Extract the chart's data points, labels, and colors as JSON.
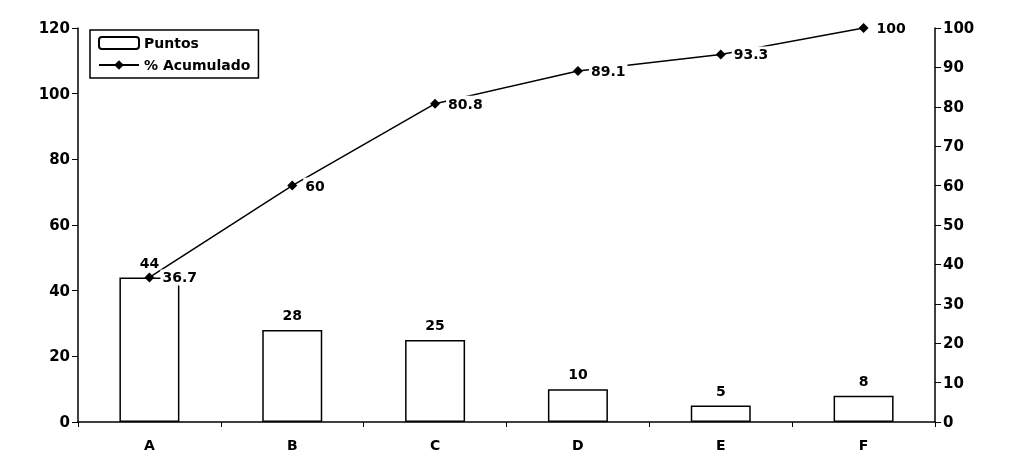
{
  "chart_data": {
    "type": "bar",
    "categories": [
      "A",
      "B",
      "C",
      "D",
      "E",
      "F"
    ],
    "series": [
      {
        "name": "Puntos",
        "color": "#ffffff",
        "values": [
          44,
          28,
          25,
          10,
          5,
          8
        ]
      },
      {
        "name": "% Acumulado",
        "type": "line",
        "axis": "y2",
        "color": "#000000",
        "values": [
          36.7,
          60,
          80.8,
          89.1,
          93.3,
          100
        ]
      }
    ],
    "ylim": [
      0,
      120
    ],
    "yticks": [
      0,
      20,
      40,
      60,
      80,
      100,
      120
    ],
    "y2lim": [
      0,
      100
    ],
    "y2ticks": [
      0,
      10,
      20,
      30,
      40,
      50,
      60,
      70,
      80,
      90,
      100
    ],
    "legend": "top left",
    "data_labels": true,
    "marker": "diamond"
  }
}
